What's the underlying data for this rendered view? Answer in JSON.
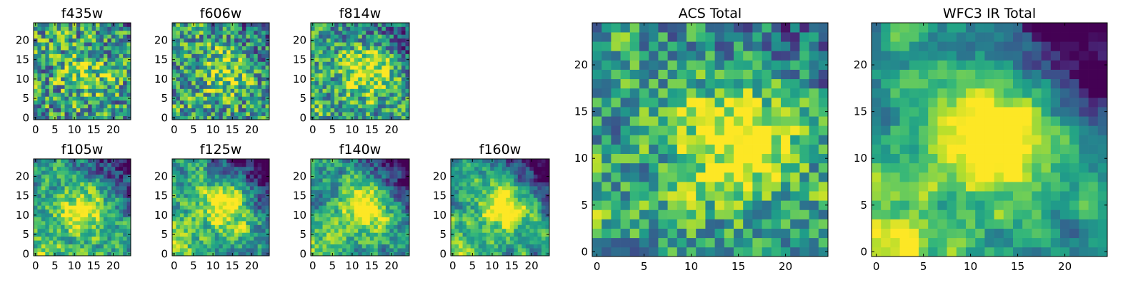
{
  "chart_data": [
    {
      "type": "heatmap",
      "title": "f435w",
      "xticks": [
        "0",
        "5",
        "10",
        "15",
        "20"
      ],
      "yticks": [
        "0",
        "5",
        "10",
        "15",
        "20"
      ],
      "xlim": [
        -0.5,
        24.5
      ],
      "ylim": [
        -0.5,
        24.5
      ],
      "grid_size": 25,
      "colormap": "viridis",
      "seed": 11,
      "profile": {
        "noise": 0.85,
        "peak": 0.35,
        "bright_blob": [
          13,
          12,
          0.25
        ],
        "dark_corner": 0.1,
        "lower_left": 0.0
      }
    },
    {
      "type": "heatmap",
      "title": "f606w",
      "xticks": [
        "0",
        "5",
        "10",
        "15",
        "20"
      ],
      "yticks": [
        "0",
        "5",
        "10",
        "15",
        "20"
      ],
      "xlim": [
        -0.5,
        24.5
      ],
      "ylim": [
        -0.5,
        24.5
      ],
      "grid_size": 25,
      "colormap": "viridis",
      "seed": 23,
      "profile": {
        "noise": 0.8,
        "peak": 0.45,
        "bright_blob": [
          13,
          12,
          0.3
        ],
        "dark_corner": 0.2,
        "lower_left": 0.05
      }
    },
    {
      "type": "heatmap",
      "title": "f814w",
      "xticks": [
        "0",
        "5",
        "10",
        "15",
        "20"
      ],
      "yticks": [
        "0",
        "5",
        "10",
        "15",
        "20"
      ],
      "xlim": [
        -0.5,
        24.5
      ],
      "ylim": [
        -0.5,
        24.5
      ],
      "grid_size": 25,
      "colormap": "viridis",
      "seed": 37,
      "profile": {
        "noise": 0.7,
        "peak": 0.6,
        "bright_blob": [
          14,
          12,
          0.45
        ],
        "dark_corner": 0.3,
        "lower_left": 0.1
      }
    },
    {
      "type": "heatmap",
      "title": "f105w",
      "xticks": [
        "0",
        "5",
        "10",
        "15",
        "20"
      ],
      "yticks": [
        "0",
        "5",
        "10",
        "15",
        "20"
      ],
      "xlim": [
        -0.5,
        24.5
      ],
      "ylim": [
        -0.5,
        24.5
      ],
      "grid_size": 25,
      "colormap": "viridis",
      "seed": 41,
      "profile": {
        "noise": 0.45,
        "peak": 0.75,
        "bright_blob": [
          12,
          11,
          0.5
        ],
        "dark_corner": 0.6,
        "lower_left": 0.3
      }
    },
    {
      "type": "heatmap",
      "title": "f125w",
      "xticks": [
        "0",
        "5",
        "10",
        "15",
        "20"
      ],
      "yticks": [
        "0",
        "5",
        "10",
        "15",
        "20"
      ],
      "xlim": [
        -0.5,
        24.5
      ],
      "ylim": [
        -0.5,
        24.5
      ],
      "grid_size": 25,
      "colormap": "viridis",
      "seed": 53,
      "profile": {
        "noise": 0.45,
        "peak": 0.78,
        "bright_blob": [
          13,
          12,
          0.5
        ],
        "dark_corner": 0.65,
        "lower_left": 0.35
      }
    },
    {
      "type": "heatmap",
      "title": "f140w",
      "xticks": [
        "0",
        "5",
        "10",
        "15",
        "20"
      ],
      "yticks": [
        "0",
        "5",
        "10",
        "15",
        "20"
      ],
      "xlim": [
        -0.5,
        24.5
      ],
      "ylim": [
        -0.5,
        24.5
      ],
      "grid_size": 25,
      "colormap": "viridis",
      "seed": 67,
      "profile": {
        "noise": 0.4,
        "peak": 0.8,
        "bright_blob": [
          13,
          12,
          0.55
        ],
        "dark_corner": 0.7,
        "lower_left": 0.35
      }
    },
    {
      "type": "heatmap",
      "title": "f160w",
      "xticks": [
        "0",
        "5",
        "10",
        "15",
        "20"
      ],
      "yticks": [
        "0",
        "5",
        "10",
        "15",
        "20"
      ],
      "xlim": [
        -0.5,
        24.5
      ],
      "ylim": [
        -0.5,
        24.5
      ],
      "grid_size": 25,
      "colormap": "viridis",
      "seed": 79,
      "profile": {
        "noise": 0.35,
        "peak": 0.85,
        "bright_blob": [
          13,
          12,
          0.6
        ],
        "dark_corner": 0.75,
        "lower_left": 0.4
      }
    },
    {
      "type": "heatmap",
      "title": "ACS Total",
      "xticks": [
        "0",
        "5",
        "10",
        "15",
        "20"
      ],
      "yticks": [
        "0",
        "5",
        "10",
        "15",
        "20"
      ],
      "xlim": [
        -0.5,
        24.5
      ],
      "ylim": [
        -0.5,
        24.5
      ],
      "grid_size": 25,
      "colormap": "viridis",
      "seed": 97,
      "profile": {
        "noise": 0.6,
        "peak": 0.65,
        "bright_blob": [
          15,
          12,
          0.5
        ],
        "dark_corner": 0.25,
        "lower_left": 0.1
      }
    },
    {
      "type": "heatmap",
      "title": "WFC3 IR Total",
      "xticks": [
        "0",
        "5",
        "10",
        "15",
        "20"
      ],
      "yticks": [
        "0",
        "5",
        "10",
        "15",
        "20"
      ],
      "xlim": [
        -0.5,
        24.5
      ],
      "ylim": [
        -0.5,
        24.5
      ],
      "grid_size": 25,
      "colormap": "viridis",
      "seed": 113,
      "profile": {
        "noise": 0.25,
        "peak": 0.85,
        "bright_blob": [
          12,
          12,
          0.65
        ],
        "dark_corner": 0.8,
        "lower_left": 0.45
      }
    }
  ]
}
